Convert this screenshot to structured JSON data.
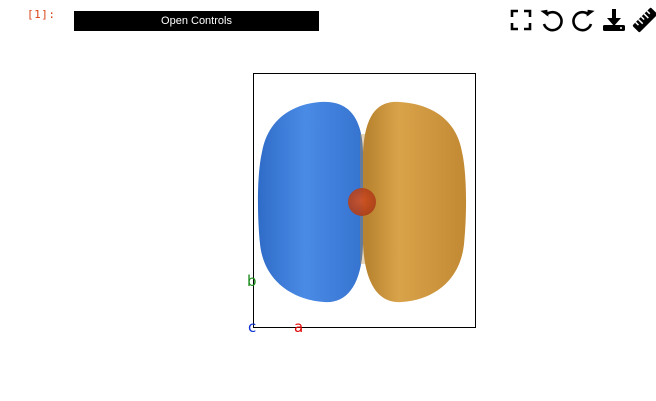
{
  "cell": {
    "prompt": "[1]:"
  },
  "controls": {
    "open_label": "Open Controls"
  },
  "toolbar": {
    "items": [
      {
        "name": "fullscreen-icon"
      },
      {
        "name": "undo-icon"
      },
      {
        "name": "redo-icon"
      },
      {
        "name": "download-icon"
      },
      {
        "name": "ruler-icon"
      }
    ]
  },
  "viewer": {
    "lobe_colors": {
      "negative": "#3f7fd9",
      "positive": "#d29a3e",
      "atom": "#c0441a"
    }
  },
  "axes": {
    "a": {
      "label": "a",
      "color": "#e00000"
    },
    "b": {
      "label": "b",
      "color": "#1a8a1a"
    },
    "c": {
      "label": "c",
      "color": "#1030d0"
    }
  }
}
